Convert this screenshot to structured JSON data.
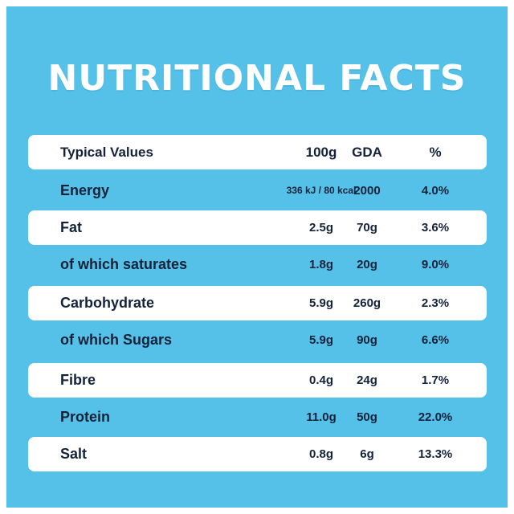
{
  "title": "NUTRITIONAL FACTS",
  "header": {
    "label": "Typical Values",
    "per100g": "100g",
    "gda": "GDA",
    "percent": "%"
  },
  "rows": [
    {
      "label": "Energy",
      "per100g": "336 kJ / 80 kcal",
      "gda": "2000",
      "percent": "4.0%"
    },
    {
      "label": "Fat",
      "per100g": "2.5g",
      "gda": "70g",
      "percent": "3.6%"
    },
    {
      "label": "of which saturates",
      "per100g": "1.8g",
      "gda": "20g",
      "percent": "9.0%"
    },
    {
      "label": "Carbohydrate",
      "per100g": "5.9g",
      "gda": "260g",
      "percent": "2.3%"
    },
    {
      "label": "of which Sugars",
      "per100g": "5.9g",
      "gda": "90g",
      "percent": "6.6%"
    },
    {
      "label": "Fibre",
      "per100g": "0.4g",
      "gda": "24g",
      "percent": "1.7%"
    },
    {
      "label": "Protein",
      "per100g": "11.0g",
      "gda": "50g",
      "percent": "22.0%"
    },
    {
      "label": "Salt",
      "per100g": "0.8g",
      "gda": "6g",
      "percent": "13.3%"
    }
  ],
  "colors": {
    "background": "#56c1e8",
    "row_band": "#ffffff",
    "text": "#14223a",
    "title": "#ffffff"
  }
}
